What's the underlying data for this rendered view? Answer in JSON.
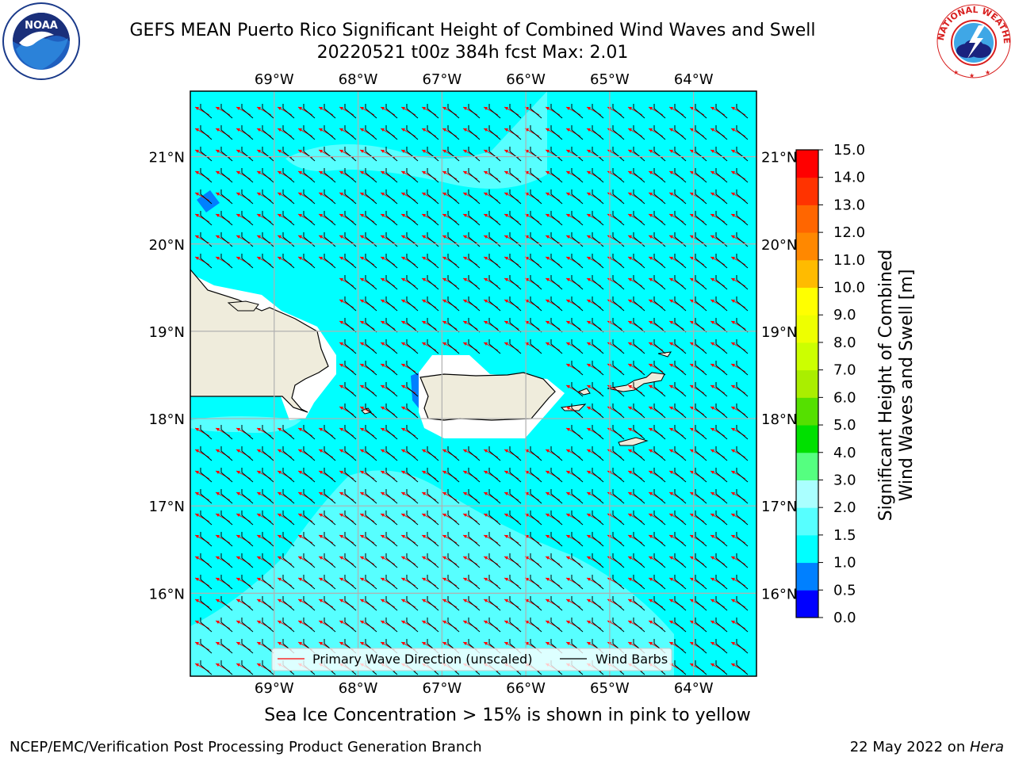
{
  "title_line1": "GEFS MEAN Puerto Rico Significant Height of Combined Wind Waves and Swell",
  "title_line2": "20220521 t00z 384h fcst   Max: 2.01",
  "note": "Sea Ice Concentration > 15% is shown in pink to yellow",
  "footer_left": "NCEP/EMC/Verification Post Processing Product Generation Branch",
  "footer_date": "22 May 2022 on ",
  "footer_host": "Hera",
  "logos": {
    "left": "NOAA",
    "right": "NATIONAL WEATHER SERVICE"
  },
  "map": {
    "lon_ticks": [
      "69°W",
      "68°W",
      "67°W",
      "66°W",
      "65°W",
      "64°W"
    ],
    "lat_ticks": [
      "21°N",
      "20°N",
      "19°N",
      "18°N",
      "17°N",
      "16°N"
    ],
    "lon_values": [
      -69,
      -68,
      -67,
      -66,
      -65,
      -64
    ],
    "lat_values": [
      21,
      20,
      19,
      18,
      17,
      16
    ],
    "extent": {
      "lon_min": -70,
      "lon_max": -63.25,
      "lat_min": 15.05,
      "lat_max": 21.75
    },
    "colors": {
      "land": "#efecdc",
      "ocean_1_5_2_0": "#00ffff",
      "ocean_2_0_2_5": "#57ffff",
      "low_0_5_1_0": "#0080ff",
      "grid": "#b0b0b0"
    },
    "legend": {
      "wave_label": "Primary Wave Direction (unscaled)",
      "barb_label": "Wind Barbs",
      "wave_color": "#ff0000",
      "barb_color": "#000000"
    }
  },
  "colorbar": {
    "label_line1": "Significant Height of Combined",
    "label_line2": "Wind Waves and Swell [m]",
    "ticks": [
      "0.0",
      "0.5",
      "1.0",
      "1.5",
      "2.0",
      "3.0",
      "4.0",
      "5.0",
      "6.0",
      "7.0",
      "8.0",
      "9.0",
      "10.0",
      "11.0",
      "12.0",
      "13.0",
      "14.0",
      "15.0"
    ],
    "colors": [
      "#0000ff",
      "#0080ff",
      "#00ffff",
      "#57ffff",
      "#aaffff",
      "#55ff80",
      "#00e000",
      "#55e000",
      "#aaee00",
      "#ccff00",
      "#eeff00",
      "#ffff00",
      "#ffbb00",
      "#ff8800",
      "#ff6600",
      "#ff3300",
      "#ff0000"
    ]
  }
}
